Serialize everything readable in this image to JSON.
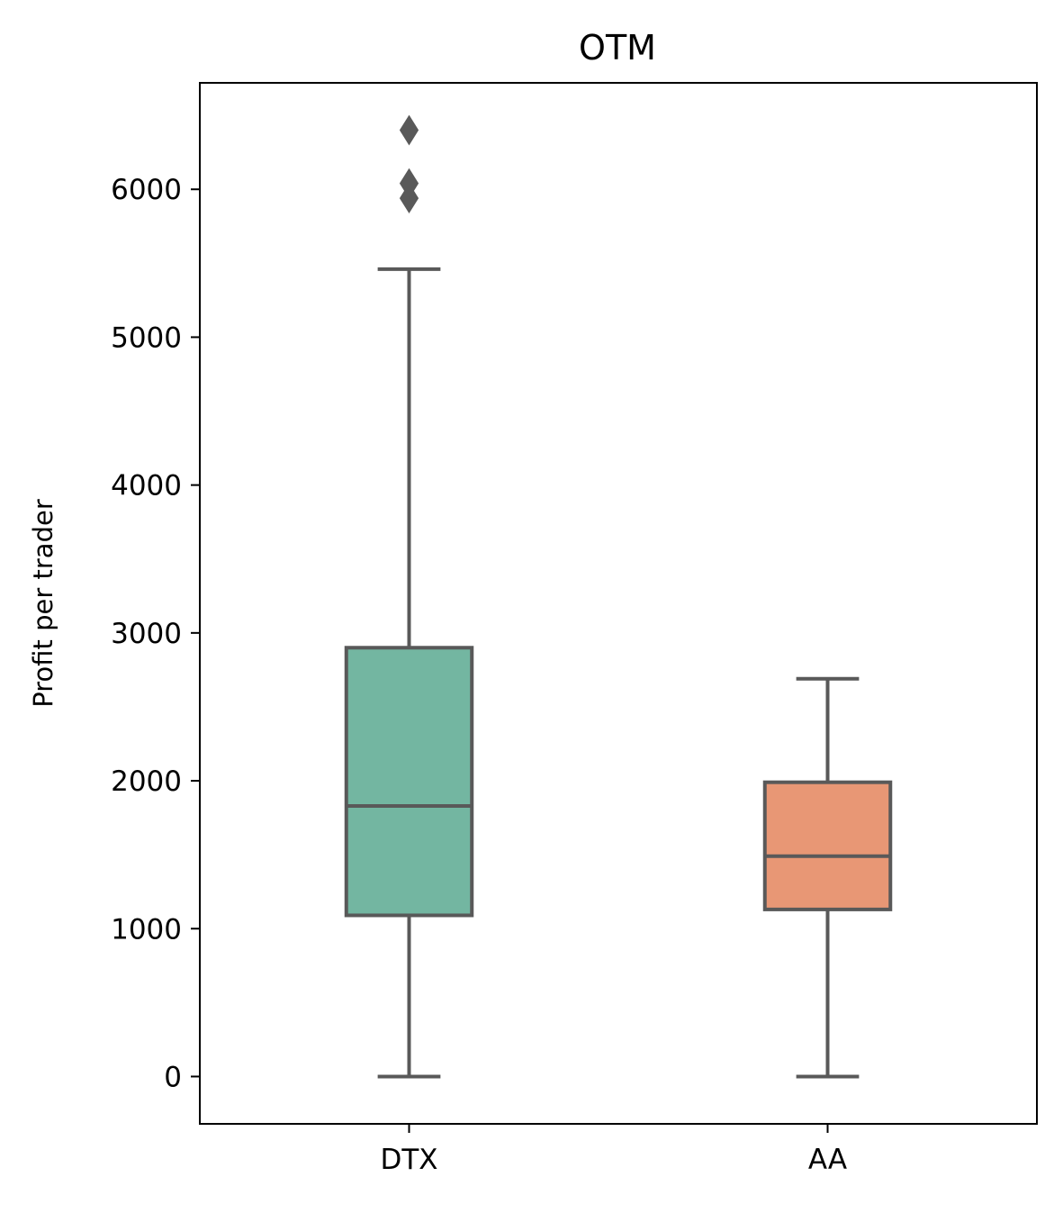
{
  "chart_data": {
    "type": "box",
    "title": "OTM",
    "xlabel": "",
    "ylabel": "Profit per trader",
    "ylim": [
      -320,
      6720
    ],
    "yticks": [
      0,
      1000,
      2000,
      3000,
      4000,
      5000,
      6000
    ],
    "categories": [
      "DTX",
      "AA"
    ],
    "grid": false,
    "legend": false,
    "series": [
      {
        "category": "DTX",
        "color": "#73b6a1",
        "whisker_low": 0,
        "q1": 1090,
        "median": 1830,
        "q3": 2900,
        "whisker_high": 5460,
        "outliers": [
          5940,
          6040,
          6400
        ]
      },
      {
        "category": "AA",
        "color": "#e89775",
        "whisker_low": 0,
        "q1": 1130,
        "median": 1490,
        "q3": 1990,
        "whisker_high": 2690,
        "outliers": []
      }
    ],
    "line_color": "#595959"
  }
}
